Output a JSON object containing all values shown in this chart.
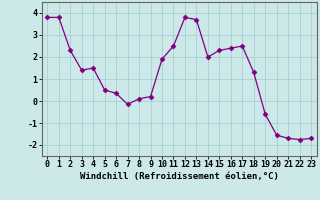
{
  "x": [
    0,
    1,
    2,
    3,
    4,
    5,
    6,
    7,
    8,
    9,
    10,
    11,
    12,
    13,
    14,
    15,
    16,
    17,
    18,
    19,
    20,
    21,
    22,
    23
  ],
  "y": [
    3.8,
    3.8,
    2.3,
    1.4,
    1.5,
    0.5,
    0.35,
    -0.15,
    0.1,
    0.2,
    1.9,
    2.5,
    3.8,
    3.7,
    2.0,
    2.3,
    2.4,
    2.5,
    1.3,
    -0.6,
    -1.55,
    -1.7,
    -1.75,
    -1.7
  ],
  "line_color": "#800080",
  "marker": "D",
  "marker_size": 2.5,
  "bg_color": "#cce8e8",
  "grid_color": "#aad4d4",
  "xlabel": "Windchill (Refroidissement éolien,°C)",
  "xlabel_fontsize": 6.5,
  "tick_fontsize": 6,
  "ylim": [
    -2.5,
    4.5
  ],
  "yticks": [
    -2,
    -1,
    0,
    1,
    2,
    3,
    4
  ],
  "xticks": [
    0,
    1,
    2,
    3,
    4,
    5,
    6,
    7,
    8,
    9,
    10,
    11,
    12,
    13,
    14,
    15,
    16,
    17,
    18,
    19,
    20,
    21,
    22,
    23
  ],
  "xlim": [
    -0.5,
    23.5
  ]
}
